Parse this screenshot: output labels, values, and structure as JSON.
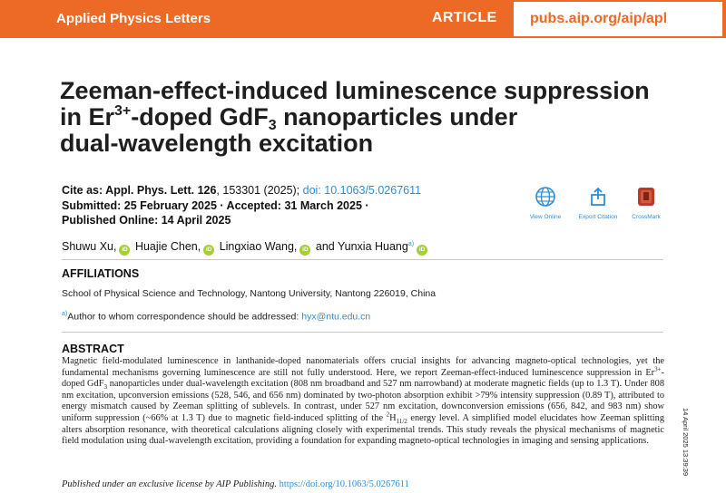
{
  "header": {
    "journal": "Applied Physics Letters",
    "type": "ARTICLE",
    "url": "pubs.aip.org/aip/apl"
  },
  "title": {
    "part1": "Zeeman-effect-induced luminescence suppression",
    "part2a": "in Er",
    "part2_sup": "3+",
    "part2b": "-doped GdF",
    "part2_sub": "3",
    "part2c": " nanoparticles under",
    "part3": "dual-wavelength excitation"
  },
  "citation": {
    "label": "Cite as: Appl. Phys. Lett. ",
    "volume": "126",
    "rest": ", 153301 (2025); ",
    "doi": "doi: 10.1063/5.0267611",
    "dates_line": "Submitted: 25 February 2025 · Accepted: 31 March 2025 ·",
    "published_line": "Published Online: 14 April 2025"
  },
  "tools": {
    "view_online": "View Online",
    "export_citation": "Export Citation",
    "crossmark": "CrossMark"
  },
  "authors": {
    "a1": "Shuwu Xu,",
    "a2": "Huajie Chen,",
    "a3": "Lingxiao Wang,",
    "a4": "and Yunxia Huang",
    "a4_mark": "a)",
    "orcid": "iD"
  },
  "affiliations": {
    "heading": "AFFILIATIONS",
    "text": "School of Physical Science and Technology, Nantong University, Nantong 226019, China",
    "corr_mark": "a)",
    "corr_text": "Author to whom correspondence should be addressed: ",
    "email": "hyx@ntu.edu.cn"
  },
  "abstract": {
    "heading": "ABSTRACT",
    "t1": "Magnetic field-modulated luminescence in lanthanide-doped nanomaterials offers crucial insights for advancing magneto-optical technologies, yet the fundamental mechanisms governing luminescence are still not fully understood. Here, we report Zeeman-effect-induced luminescence suppression in Er",
    "sup1": "3+",
    "t2": "-doped GdF",
    "sub1": "3",
    "t3": " nanoparticles under dual-wavelength excitation (808 nm broadband and 527 nm narrowband) at moderate magnetic fields (up to 1.3 T). Under 808 nm excitation, upconversion emissions (528, 546, and 656 nm) dominated by two-photon absorption exhibit >79% intensity suppression (0.89 T), attributed to energy mismatch caused by Zeeman splitting of sublevels. In contrast, under 527 nm excitation, downconversion emissions (656, 842, and 983 nm) show uniform suppression (~66% at 1.3 T) due to magnetic field-induced splitting of the ",
    "sup2": "2",
    "t4": "H",
    "sub2": "11/2",
    "t5": " energy level. A simplified model elucidates how Zeeman splitting alters absorption resonance, with theoretical calculations aligning closely with experimental trends. This study reveals the physical mechanisms of magnetic field modulation using dual-wavelength excitation, providing a foundation for expanding magneto-optical technologies in imaging and sensing applications."
  },
  "license": {
    "text": "Published under an exclusive license by AIP Publishing.",
    "link": " https://doi.org/10.1063/5.0267611"
  },
  "stamp": "14 April 2025 13:39:39",
  "colors": {
    "brand": "#ec6a26",
    "link": "#2a8fd8",
    "orcid": "#a6ce39"
  }
}
